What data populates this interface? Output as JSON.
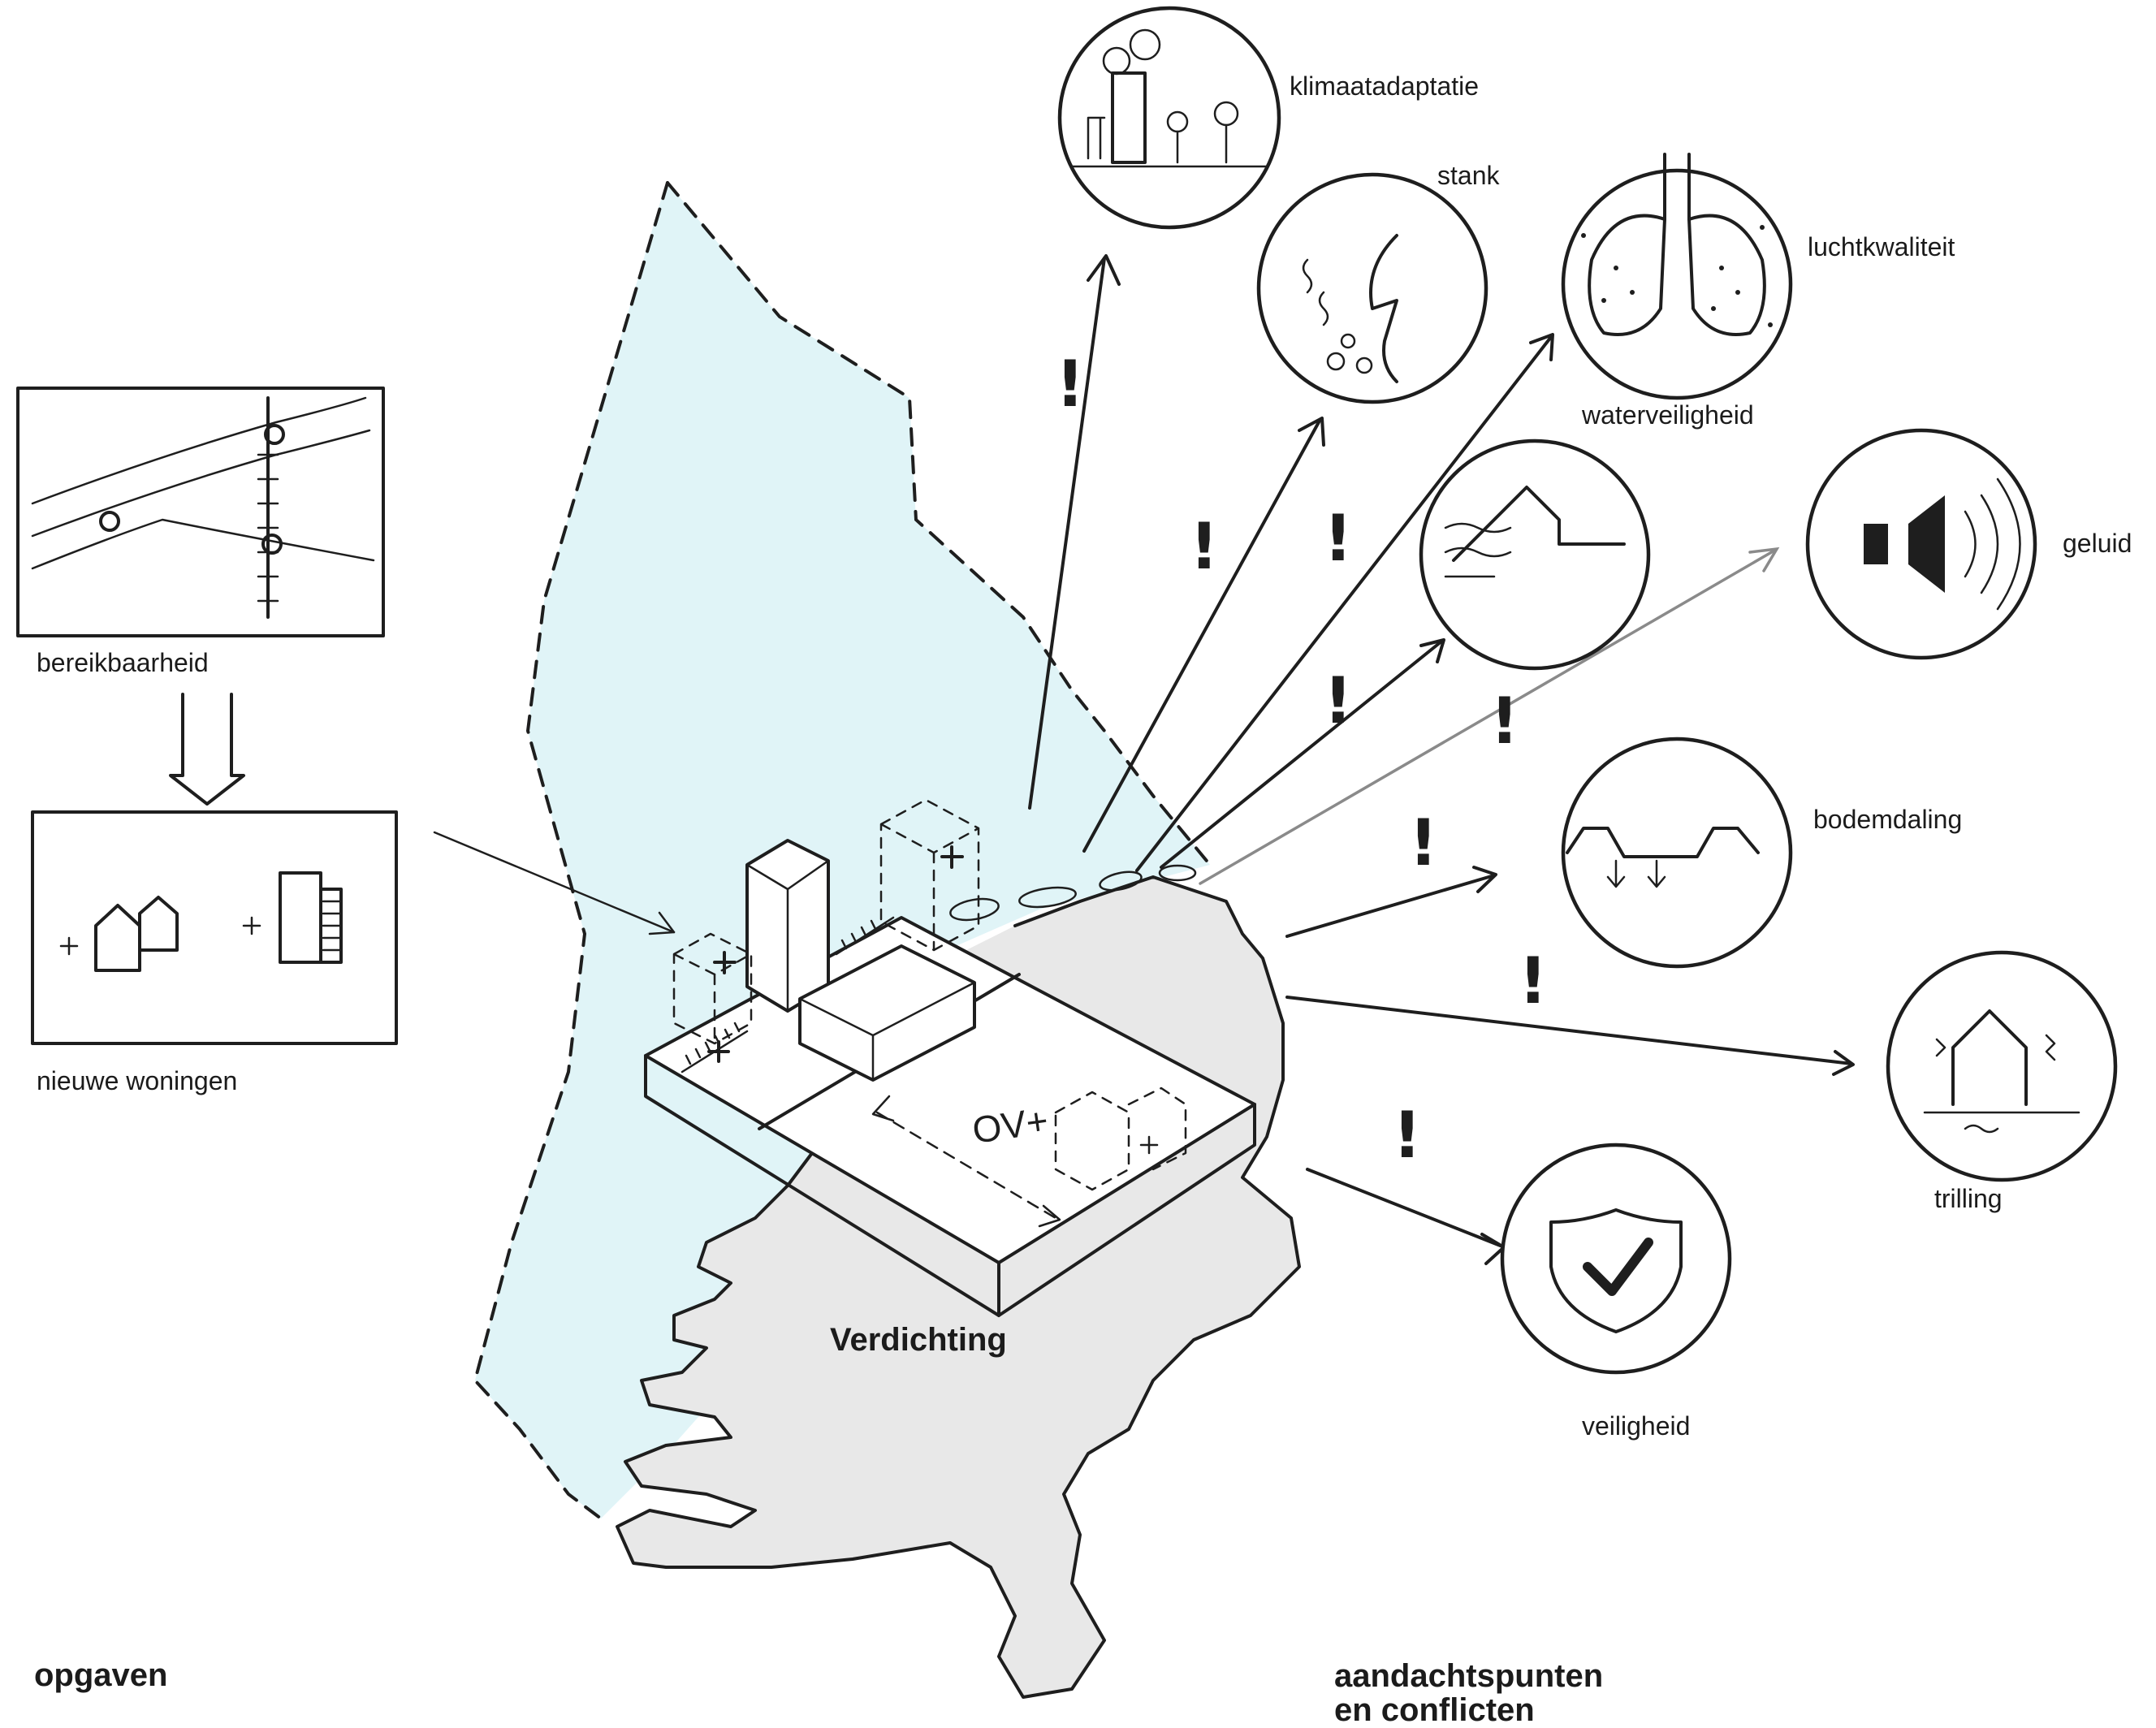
{
  "colors": {
    "sea_area": "#e0f4f7",
    "land": "#e8e8e8",
    "ink": "#1e1e1e",
    "arrow_light": "#8a8a8a"
  },
  "opgaven": {
    "bereikbaarheid": "bereikbaarheid",
    "nieuwe_woningen": "nieuwe woningen",
    "verdichting": "Verdichting",
    "ov_label": "OV+",
    "section_title": "opgaven"
  },
  "aandachtspunten": {
    "section_title": "aandachtspunten\nen conflicten",
    "items": [
      {
        "label": "klimaatadaptatie",
        "icon": "climate-adaptation-icon"
      },
      {
        "label": "stank",
        "icon": "odor-nose-icon"
      },
      {
        "label": "luchtkwaliteit",
        "icon": "lungs-icon"
      },
      {
        "label": "waterveiligheid",
        "icon": "dike-water-icon"
      },
      {
        "label": "geluid",
        "icon": "speaker-icon"
      },
      {
        "label": "bodemdaling",
        "icon": "subsidence-icon"
      },
      {
        "label": "trilling",
        "icon": "vibrating-house-icon"
      },
      {
        "label": "veiligheid",
        "icon": "shield-check-icon"
      }
    ],
    "warning_mark": "!"
  }
}
